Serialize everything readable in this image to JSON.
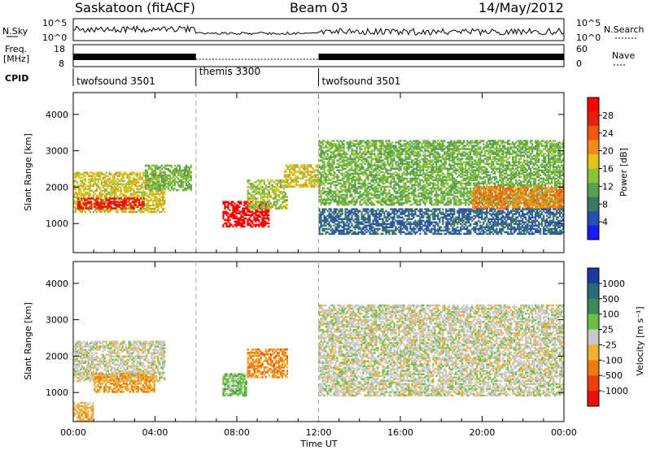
{
  "header": {
    "title": "Saskatoon (fitACF)",
    "beam": "Beam 03",
    "date": "14/May/2012"
  },
  "top_panel": {
    "nsky_label": "N.Sky",
    "nsearch_label": "N.Search",
    "freq_label_1": "Freq.",
    "freq_label_2": "[MHz]",
    "nave_label": "Nave",
    "cpid_label": "CPID",
    "left_ticks_noise": [
      "10^5",
      "10^0"
    ],
    "right_ticks_noise": [
      "10^5",
      "10^0"
    ],
    "left_ticks_freq": [
      "18",
      "8"
    ],
    "right_ticks_nave": [
      "60",
      "0"
    ],
    "cpid_segments": [
      {
        "label": "twofsound 3501",
        "start": 0,
        "end": 6
      },
      {
        "label": "themis 3300",
        "start": 6,
        "end": 12
      },
      {
        "label": "twofsound 3501",
        "start": 12,
        "end": 24
      }
    ]
  },
  "power_panel": {
    "ylabel": "Slant Range [km]",
    "colorbar_label": "Power [dB]",
    "colorbar_ticks": [
      "28",
      "24",
      "20",
      "16",
      "12",
      "8",
      "4"
    ],
    "colors": [
      "#1a1aff",
      "#2b4fb0",
      "#3a7a63",
      "#5aa050",
      "#8ac23a",
      "#e8c21a",
      "#f08c1a",
      "#f05a10",
      "#e82010",
      "#ff0000"
    ]
  },
  "velocity_panel": {
    "ylabel": "Slant Range [km]",
    "colorbar_label": "Velocity [m s⁻¹]",
    "colorbar_ticks": [
      "1000",
      "500",
      "100",
      "25",
      "-25",
      "-100",
      "-500",
      "-1000"
    ],
    "colors": [
      "#1a3aa0",
      "#2a6a7a",
      "#3a8a5a",
      "#6ac040",
      "#c8c8c8",
      "#f0b030",
      "#f07a10",
      "#f04010",
      "#e81010"
    ]
  },
  "xaxis": {
    "label": "Time UT",
    "ticks": [
      "00:00",
      "04:00",
      "08:00",
      "12:00",
      "16:00",
      "20:00",
      "00:00"
    ]
  },
  "chart_data": [
    {
      "type": "heatmap",
      "title": "Saskatoon (fitACF)  Beam 03  14/May/2012",
      "quantity": "Power [dB]",
      "xlabel": "Time UT",
      "ylabel": "Slant Range [km]",
      "xlim": [
        0,
        24
      ],
      "ylim": [
        200,
        4600
      ],
      "yticks": [
        1000,
        2000,
        3000,
        4000
      ],
      "clim": [
        0,
        30
      ],
      "regions": [
        {
          "t0": 0.0,
          "t1": 4.5,
          "r0": 1300,
          "r1": 2400,
          "value": 16
        },
        {
          "t0": 0.2,
          "t1": 3.5,
          "r0": 1400,
          "r1": 1700,
          "value": 26
        },
        {
          "t0": 3.5,
          "t1": 5.8,
          "r0": 1900,
          "r1": 2600,
          "value": 12
        },
        {
          "t0": 7.3,
          "t1": 9.6,
          "r0": 900,
          "r1": 1600,
          "value": 30
        },
        {
          "t0": 8.5,
          "t1": 10.5,
          "r0": 1400,
          "r1": 2200,
          "value": 14
        },
        {
          "t0": 10.3,
          "t1": 12.0,
          "r0": 2000,
          "r1": 2600,
          "value": 16
        },
        {
          "t0": 12.0,
          "t1": 24.0,
          "r0": 1500,
          "r1": 3300,
          "value": 12
        },
        {
          "t0": 19.5,
          "t1": 24.0,
          "r0": 1400,
          "r1": 2000,
          "value": 20
        },
        {
          "t0": 12.0,
          "t1": 24.0,
          "r0": 700,
          "r1": 1400,
          "value": 6
        }
      ]
    },
    {
      "type": "heatmap",
      "quantity": "Velocity [m s-1]",
      "xlabel": "Time UT",
      "ylabel": "Slant Range [km]",
      "xlim": [
        0,
        24
      ],
      "ylim": [
        200,
        4600
      ],
      "yticks": [
        1000,
        2000,
        3000,
        4000
      ],
      "clim": [
        -1000,
        1000
      ],
      "regions": [
        {
          "t0": 0.0,
          "t1": 4.5,
          "r0": 1300,
          "r1": 2400,
          "value": 0
        },
        {
          "t0": 1.0,
          "t1": 4.0,
          "r0": 1000,
          "r1": 1500,
          "value": -300
        },
        {
          "t0": 7.3,
          "t1": 8.5,
          "r0": 900,
          "r1": 1500,
          "value": 200
        },
        {
          "t0": 8.5,
          "t1": 10.5,
          "r0": 1400,
          "r1": 2200,
          "value": -400
        },
        {
          "t0": 12.0,
          "t1": 24.0,
          "r0": 900,
          "r1": 3400,
          "value": 0
        },
        {
          "t0": 0.0,
          "t1": 1.0,
          "r0": 200,
          "r1": 700,
          "value": -200
        }
      ]
    }
  ]
}
